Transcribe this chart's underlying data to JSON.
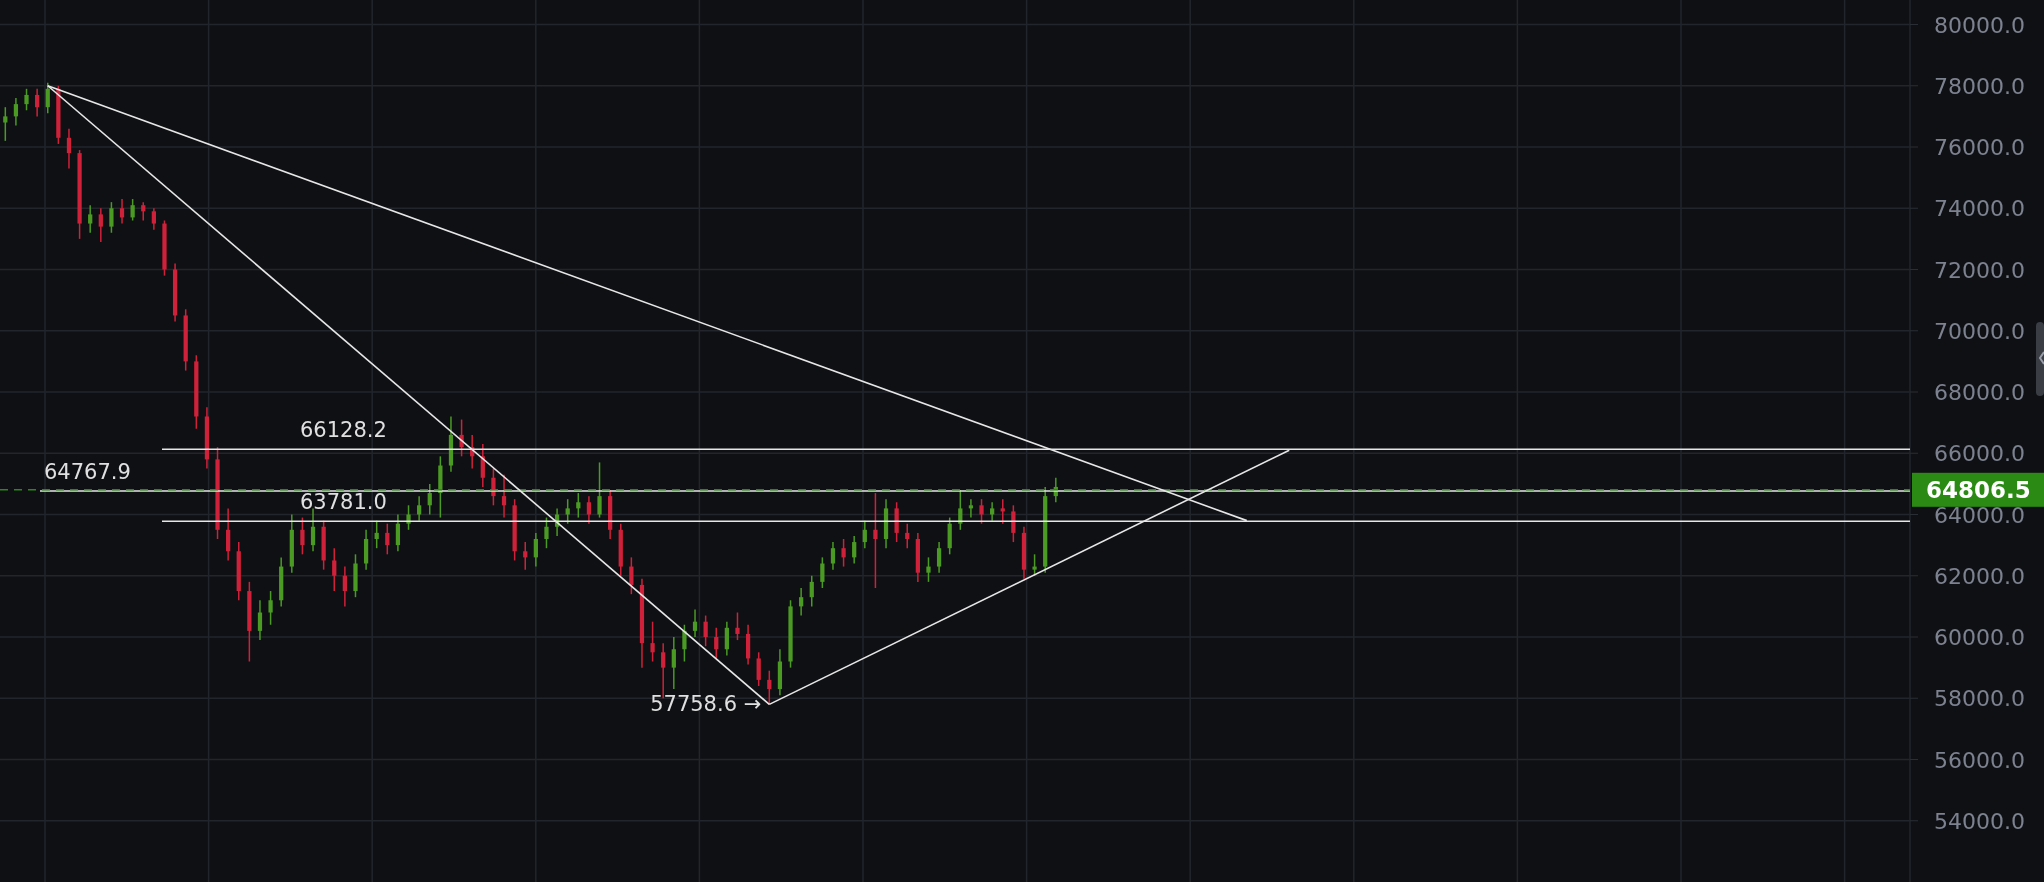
{
  "chart_data": {
    "type": "candlestick",
    "categories": [
      null,
      null,
      null,
      null,
      null,
      null,
      null,
      null,
      null,
      null,
      null,
      null,
      null,
      null,
      null,
      null,
      null,
      null,
      null,
      null,
      null,
      null,
      null,
      null,
      null,
      null,
      null,
      null,
      null,
      null,
      null,
      null,
      null,
      null,
      null,
      null,
      null,
      null,
      null,
      null,
      null,
      null,
      null,
      null,
      null,
      null,
      null,
      null,
      null,
      null,
      null,
      null,
      null,
      null,
      null,
      null,
      null,
      null,
      null,
      null,
      null,
      null,
      null,
      null,
      null,
      null,
      null,
      null,
      null,
      null,
      null,
      null,
      null,
      null,
      null,
      null,
      null,
      null,
      null,
      null,
      null,
      null,
      null,
      null,
      null,
      null,
      null,
      null,
      null,
      null,
      null,
      null,
      null,
      null,
      null,
      null,
      null,
      null,
      null,
      null,
      null,
      null,
      null,
      null,
      null,
      null,
      null,
      null,
      null,
      null,
      null,
      null,
      null,
      null,
      null,
      null,
      null,
      null,
      null,
      null,
      null,
      null,
      null,
      null,
      null,
      null,
      null,
      null,
      null,
      null,
      null,
      null,
      null,
      null,
      null,
      null,
      null,
      null,
      null,
      null,
      null,
      null,
      null,
      null,
      null,
      null,
      null,
      null,
      null,
      null,
      null,
      null,
      null,
      null,
      null,
      null,
      null,
      null,
      null,
      null,
      null,
      null,
      null,
      null,
      null,
      null,
      null,
      null,
      null,
      null,
      null,
      null,
      null,
      null,
      null,
      null,
      null,
      null,
      null,
      null
    ],
    "ohlc": [
      [
        76800,
        77300,
        76200,
        77000
      ],
      [
        77000,
        77600,
        76700,
        77400
      ],
      [
        77400,
        77900,
        77200,
        77700
      ],
      [
        77700,
        77900,
        77000,
        77300
      ],
      [
        77300,
        78100,
        77100,
        77900
      ],
      [
        77900,
        78000,
        76100,
        76300
      ],
      [
        76300,
        76600,
        75300,
        75800
      ],
      [
        75800,
        75900,
        73000,
        73500
      ],
      [
        73500,
        74100,
        73200,
        73800
      ],
      [
        73800,
        74000,
        72900,
        73400
      ],
      [
        73400,
        74200,
        73200,
        74000
      ],
      [
        74000,
        74300,
        73500,
        73700
      ],
      [
        73700,
        74300,
        73600,
        74100
      ],
      [
        74100,
        74200,
        73600,
        73900
      ],
      [
        73900,
        74000,
        73300,
        73500
      ],
      [
        73500,
        73600,
        71800,
        72000
      ],
      [
        72000,
        72200,
        70300,
        70500
      ],
      [
        70500,
        70700,
        68700,
        69000
      ],
      [
        69000,
        69200,
        66800,
        67200
      ],
      [
        67200,
        67500,
        65500,
        65800
      ],
      [
        65800,
        66200,
        63200,
        63500
      ],
      [
        63500,
        64200,
        62500,
        62800
      ],
      [
        62800,
        63100,
        61200,
        61500
      ],
      [
        61500,
        61800,
        59200,
        60200
      ],
      [
        60200,
        61200,
        59900,
        60800
      ],
      [
        60800,
        61500,
        60400,
        61200
      ],
      [
        61200,
        62600,
        61000,
        62300
      ],
      [
        62300,
        64000,
        62100,
        63500
      ],
      [
        63500,
        63900,
        62700,
        63000
      ],
      [
        63000,
        64200,
        62800,
        63600
      ],
      [
        63600,
        63800,
        62200,
        62500
      ],
      [
        62500,
        62900,
        61500,
        62000
      ],
      [
        62000,
        62300,
        61000,
        61500
      ],
      [
        61500,
        62700,
        61300,
        62400
      ],
      [
        62400,
        63500,
        62200,
        63200
      ],
      [
        63200,
        63800,
        62900,
        63400
      ],
      [
        63400,
        63700,
        62700,
        63000
      ],
      [
        63000,
        64000,
        62800,
        63700
      ],
      [
        63700,
        64300,
        63500,
        64000
      ],
      [
        64000,
        64600,
        63800,
        64300
      ],
      [
        64300,
        65000,
        64000,
        64700
      ],
      [
        64700,
        65900,
        63900,
        65600
      ],
      [
        65600,
        67200,
        65400,
        66600
      ],
      [
        66600,
        67100,
        65900,
        66200
      ],
      [
        66200,
        66600,
        65500,
        65900
      ],
      [
        65900,
        66300,
        64900,
        65200
      ],
      [
        65200,
        65500,
        64300,
        64600
      ],
      [
        64600,
        65300,
        63900,
        64300
      ],
      [
        64300,
        64500,
        62500,
        62800
      ],
      [
        62800,
        63100,
        62200,
        62600
      ],
      [
        62600,
        63400,
        62300,
        63200
      ],
      [
        63200,
        63900,
        62900,
        63600
      ],
      [
        63600,
        64200,
        63300,
        64000
      ],
      [
        64000,
        64500,
        63700,
        64200
      ],
      [
        64200,
        64700,
        63900,
        64400
      ],
      [
        64400,
        64600,
        63700,
        64000
      ],
      [
        64000,
        65700,
        63900,
        64600
      ],
      [
        64600,
        64800,
        63200,
        63500
      ],
      [
        63500,
        63700,
        62000,
        62300
      ],
      [
        62300,
        62600,
        61400,
        61700
      ],
      [
        61700,
        61900,
        59000,
        59800
      ],
      [
        59800,
        60500,
        59200,
        59500
      ],
      [
        59500,
        59800,
        58000,
        59000
      ],
      [
        59000,
        60000,
        58300,
        59600
      ],
      [
        59600,
        60400,
        59200,
        60200
      ],
      [
        60200,
        60900,
        60000,
        60500
      ],
      [
        60500,
        60700,
        59700,
        60000
      ],
      [
        60000,
        60300,
        59300,
        59600
      ],
      [
        59600,
        60500,
        59400,
        60300
      ],
      [
        60300,
        60800,
        59900,
        60100
      ],
      [
        60100,
        60400,
        59100,
        59300
      ],
      [
        59300,
        59500,
        58400,
        58600
      ],
      [
        58600,
        58900,
        57800,
        58300
      ],
      [
        58300,
        59600,
        58100,
        59200
      ],
      [
        59200,
        61200,
        59000,
        61000
      ],
      [
        61000,
        61600,
        60700,
        61300
      ],
      [
        61300,
        62000,
        61000,
        61800
      ],
      [
        61800,
        62600,
        61600,
        62400
      ],
      [
        62400,
        63100,
        62200,
        62900
      ],
      [
        62900,
        63200,
        62300,
        62600
      ],
      [
        62600,
        63300,
        62400,
        63100
      ],
      [
        63100,
        63800,
        62900,
        63500
      ],
      [
        63500,
        64700,
        61600,
        63200
      ],
      [
        63200,
        64500,
        62900,
        64200
      ],
      [
        64200,
        64400,
        63100,
        63400
      ],
      [
        63400,
        63700,
        62900,
        63200
      ],
      [
        63200,
        63400,
        61800,
        62100
      ],
      [
        62100,
        62600,
        61800,
        62300
      ],
      [
        62300,
        63100,
        62100,
        62900
      ],
      [
        62900,
        63900,
        62700,
        63700
      ],
      [
        63700,
        64800,
        63500,
        64200
      ],
      [
        64200,
        64500,
        63900,
        64300
      ],
      [
        64300,
        64500,
        63700,
        64000
      ],
      [
        64000,
        64400,
        63800,
        64200
      ],
      [
        64200,
        64500,
        63700,
        64100
      ],
      [
        64100,
        64300,
        63100,
        63400
      ],
      [
        63400,
        63600,
        61900,
        62200
      ],
      [
        62200,
        62700,
        62000,
        62300
      ],
      [
        62300,
        64900,
        62100,
        64600
      ],
      [
        64600,
        65200,
        64400,
        64900
      ],
      null,
      null,
      null,
      null,
      null,
      null,
      null,
      null,
      null,
      null,
      null,
      null,
      null,
      null,
      null,
      null,
      null,
      null,
      null,
      null,
      null,
      null,
      null,
      null,
      null,
      null,
      null,
      null,
      null,
      null,
      null,
      null,
      null,
      null,
      null,
      null,
      null,
      null,
      null,
      null,
      null,
      null,
      null,
      null,
      null,
      null,
      null,
      null,
      null,
      null,
      null,
      null,
      null,
      null,
      null,
      null,
      null,
      null,
      null,
      null,
      null,
      null,
      null,
      null,
      null,
      null,
      null,
      null,
      null,
      null,
      null,
      null,
      null,
      null,
      null,
      null,
      null,
      null,
      null,
      null
    ],
    "series": [
      {
        "type": "line",
        "color": "#e6e6e6",
        "values": [
          null,
          null,
          null,
          null,
          78000,
          null,
          null,
          null,
          null,
          null,
          null,
          null,
          null,
          null,
          null,
          null,
          null,
          null,
          null,
          null,
          null,
          null,
          null,
          null,
          null,
          null,
          null,
          null,
          null,
          null,
          null,
          null,
          null,
          null,
          null,
          null,
          null,
          null,
          null,
          null,
          null,
          null,
          null,
          null,
          null,
          null,
          null,
          null,
          null,
          null,
          null,
          null,
          null,
          null,
          null,
          null,
          null,
          null,
          null,
          null,
          null,
          null,
          null,
          null,
          null,
          null,
          null,
          null,
          null,
          null,
          null,
          null,
          null,
          null,
          null,
          null,
          null,
          null,
          null,
          null,
          null,
          null,
          null,
          null,
          null,
          null,
          null,
          null,
          null,
          null,
          null,
          null,
          null,
          null,
          null,
          null,
          null,
          null,
          null,
          null,
          null,
          null,
          null,
          null,
          null,
          null,
          null,
          null,
          null,
          null,
          null,
          null,
          null,
          null,
          null,
          null,
          null,
          63800,
          null,
          null,
          null,
          null,
          null,
          null,
          null,
          null,
          null,
          null,
          null,
          null,
          null,
          null,
          null,
          null,
          null,
          null,
          null,
          null,
          null,
          null,
          null,
          null,
          null,
          null,
          null,
          null,
          null,
          null,
          null,
          null,
          null,
          null,
          null,
          null,
          null,
          null,
          null,
          null,
          null,
          null,
          null,
          null,
          null,
          null,
          null,
          null,
          null,
          null,
          null,
          null,
          null,
          null,
          null,
          null,
          null,
          null,
          null,
          null,
          null,
          null
        ]
      },
      {
        "type": "line",
        "color": "#e6e6e6",
        "values": [
          null,
          null,
          null,
          null,
          78000,
          null,
          null,
          null,
          null,
          null,
          null,
          null,
          null,
          null,
          null,
          null,
          null,
          null,
          null,
          null,
          null,
          null,
          null,
          null,
          null,
          null,
          null,
          null,
          null,
          null,
          null,
          null,
          null,
          null,
          null,
          null,
          null,
          null,
          null,
          null,
          null,
          null,
          null,
          null,
          null,
          null,
          null,
          null,
          null,
          null,
          null,
          null,
          null,
          null,
          null,
          null,
          null,
          null,
          null,
          null,
          null,
          null,
          null,
          null,
          null,
          null,
          null,
          null,
          null,
          null,
          null,
          null,
          57800,
          null,
          null,
          null,
          null,
          null,
          null,
          null,
          null,
          null,
          null,
          null,
          null,
          null,
          null,
          null,
          null,
          null,
          null,
          null,
          null,
          null,
          null,
          null,
          null,
          null,
          null,
          null,
          null,
          null,
          null,
          null,
          null,
          null,
          null,
          null,
          null,
          null,
          null,
          null,
          null,
          null,
          null,
          null,
          null,
          null,
          null,
          null,
          null,
          null,
          null,
          null,
          null,
          null,
          null,
          null,
          null,
          null,
          null,
          null,
          null,
          null,
          null,
          null,
          null,
          null,
          null,
          null,
          null,
          null,
          null,
          null,
          null,
          null,
          null,
          null,
          null,
          null,
          null,
          null,
          null,
          null,
          null,
          null,
          null,
          null,
          null,
          null,
          null,
          null,
          null,
          null,
          null,
          null,
          null,
          null,
          null,
          null,
          null,
          null,
          null,
          null,
          null,
          null,
          null,
          null,
          null,
          null
        ]
      },
      {
        "type": "line",
        "color": "#e6e6e6",
        "values": [
          null,
          null,
          null,
          null,
          null,
          null,
          null,
          null,
          null,
          null,
          null,
          null,
          null,
          null,
          null,
          null,
          null,
          null,
          null,
          null,
          null,
          null,
          null,
          null,
          null,
          null,
          null,
          null,
          null,
          null,
          null,
          null,
          null,
          null,
          null,
          null,
          null,
          null,
          null,
          null,
          null,
          null,
          null,
          null,
          null,
          null,
          null,
          null,
          null,
          null,
          null,
          null,
          null,
          null,
          null,
          null,
          null,
          null,
          null,
          null,
          null,
          null,
          null,
          null,
          null,
          null,
          null,
          null,
          null,
          null,
          null,
          null,
          57800,
          null,
          null,
          null,
          null,
          null,
          null,
          null,
          null,
          null,
          null,
          null,
          null,
          null,
          null,
          null,
          null,
          null,
          null,
          null,
          null,
          null,
          null,
          null,
          null,
          null,
          null,
          null,
          null,
          null,
          null,
          null,
          null,
          null,
          null,
          null,
          null,
          null,
          null,
          null,
          null,
          null,
          null,
          null,
          null,
          null,
          null,
          null,
          null,
          66100,
          null,
          null,
          null,
          null,
          null,
          null,
          null,
          null,
          null,
          null,
          null,
          null,
          null,
          null,
          null,
          null,
          null,
          null,
          null,
          null,
          null,
          null,
          null,
          null,
          null,
          null,
          null,
          null,
          null,
          null,
          null,
          null,
          null,
          null,
          null,
          null,
          null,
          null,
          null,
          null,
          null,
          null,
          null,
          null,
          null,
          null,
          null,
          null,
          null,
          null,
          null,
          null,
          null,
          null,
          null,
          null,
          null,
          null
        ]
      }
    ],
    "ylim": [
      52000,
      80800
    ],
    "yticks": [
      {
        "value": 54000,
        "label": "54000.0"
      },
      {
        "value": 56000,
        "label": "56000.0"
      },
      {
        "value": 58000,
        "label": "58000.0"
      },
      {
        "value": 60000,
        "label": "60000.0"
      },
      {
        "value": 62000,
        "label": "62000.0"
      },
      {
        "value": 64000,
        "label": "64000.0"
      },
      {
        "value": 66000,
        "label": "66000.0"
      },
      {
        "value": 68000,
        "label": "68000.0"
      },
      {
        "value": 70000,
        "label": "70000.0"
      },
      {
        "value": 72000,
        "label": "72000.0"
      },
      {
        "value": 74000,
        "label": "74000.0"
      },
      {
        "value": 76000,
        "label": "76000.0"
      },
      {
        "value": 78000,
        "label": "78000.0"
      },
      {
        "value": 80000,
        "label": "80000.0"
      }
    ],
    "ref_lines": [
      {
        "axis": "y",
        "value": 66128.2,
        "label": "66128.2"
      },
      {
        "axis": "y",
        "value": 64767.9,
        "label": "64767.9"
      },
      {
        "axis": "y",
        "value": 63781.0,
        "label": "63781.0"
      },
      {
        "axis": "y",
        "value": 64806.5,
        "label": "64806.5",
        "color": "#2a8a14",
        "line_style": "dashed"
      }
    ],
    "annotations": [
      "57758.6 →"
    ],
    "grid": true,
    "tick_labels": "y"
  }
}
